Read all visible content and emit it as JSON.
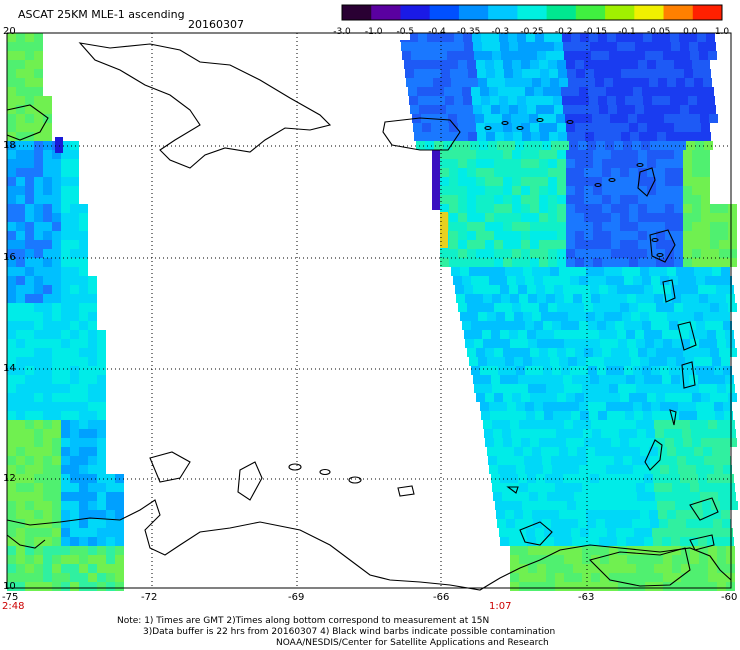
{
  "header": {
    "title": "ASCAT 25KM MLE-1 ascending",
    "date": "20160307"
  },
  "colorbar": {
    "labels": [
      "-3.0",
      "-1.0",
      "-0.5",
      "-0.4",
      "-0.35",
      "-0.3",
      "-0.25",
      "-0.2",
      "-0.15",
      "-0.1",
      "-0.05",
      "0.0",
      "1.0"
    ],
    "colors": [
      "#2a0033",
      "#5a00a0",
      "#1a1ae6",
      "#0050ff",
      "#0090ff",
      "#00c8ff",
      "#00f0e0",
      "#00e890",
      "#40f040",
      "#a0f000",
      "#f0f000",
      "#ff8000",
      "#ff2000"
    ]
  },
  "axes": {
    "lon_labels": [
      "-75",
      "-72",
      "-69",
      "-66",
      "-63",
      "-60"
    ],
    "lat_labels": [
      "20",
      "18",
      "16",
      "14",
      "12",
      "10"
    ],
    "times": [
      "2:48",
      "1:07"
    ]
  },
  "notes": {
    "line1": "Note: 1) Times are GMT 2)Times along bottom correspond to measurement at 15N",
    "line2": "3)Data buffer is 22 hrs from 20160307 4) Black wind barbs indicate possible contamination",
    "line3": "NOAA/NESDIS/Center for Satellite Applications and Research"
  },
  "palette": {
    "time_label": "#cc0000",
    "grid": "#000000",
    "coast": "#000000"
  }
}
